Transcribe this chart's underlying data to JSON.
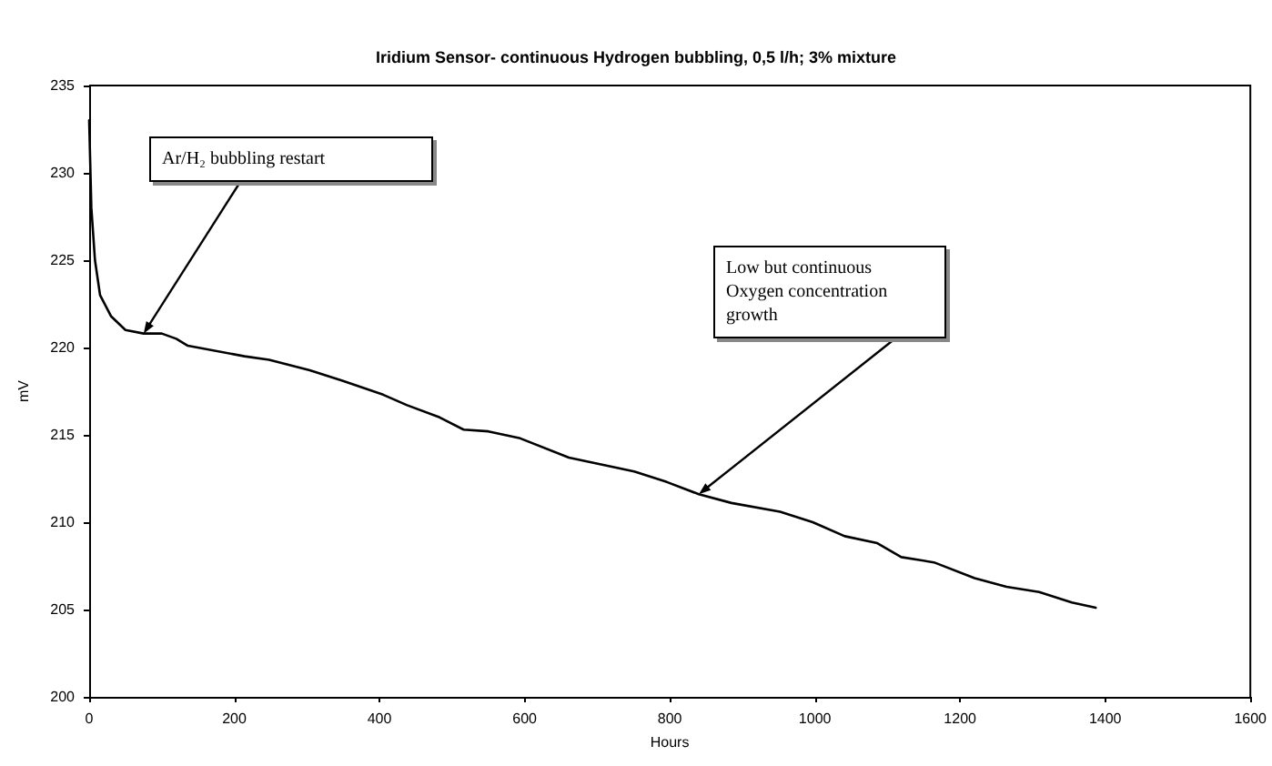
{
  "chart_data": {
    "type": "line",
    "title": "Iridium Sensor- continuous Hydrogen bubbling, 0,5 l/h; 3% mixture",
    "xlabel": "Hours",
    "ylabel": "mV",
    "xlim": [
      0,
      1600
    ],
    "xticks": [
      0,
      200,
      400,
      600,
      800,
      1000,
      1200,
      1400,
      1600
    ],
    "ylim": [
      200,
      235
    ],
    "yticks": [
      200,
      205,
      210,
      215,
      220,
      225,
      230,
      235
    ],
    "grid": false,
    "marker": "none",
    "line_style": "solid",
    "annotations": [
      {
        "text": "Ar/H₂ bubbling restart",
        "x": 75,
        "y": 220.8
      },
      {
        "text": "Low but continuous Oxygen concentration growth",
        "x": 840,
        "y": 211.6
      }
    ],
    "series": [
      {
        "color": "#000000",
        "x": [
          0,
          3,
          8,
          15,
          30,
          50,
          75,
          100,
          120,
          136,
          214,
          248,
          304,
          349,
          405,
          438,
          483,
          516,
          550,
          594,
          661,
          751,
          796,
          840,
          885,
          952,
          997,
          1041,
          1086,
          1119,
          1164,
          1220,
          1264,
          1309,
          1354,
          1387
        ],
        "values": [
          233,
          228,
          225,
          223,
          221.8,
          221,
          220.8,
          220.8,
          220.5,
          220.1,
          219.5,
          219.3,
          218.7,
          218.1,
          217.3,
          216.7,
          216,
          215.3,
          215.2,
          214.8,
          213.7,
          212.9,
          212.3,
          211.6,
          211.1,
          210.6,
          210,
          209.2,
          208.8,
          208,
          207.7,
          206.8,
          206.3,
          206,
          205.4,
          205.1
        ]
      }
    ]
  }
}
